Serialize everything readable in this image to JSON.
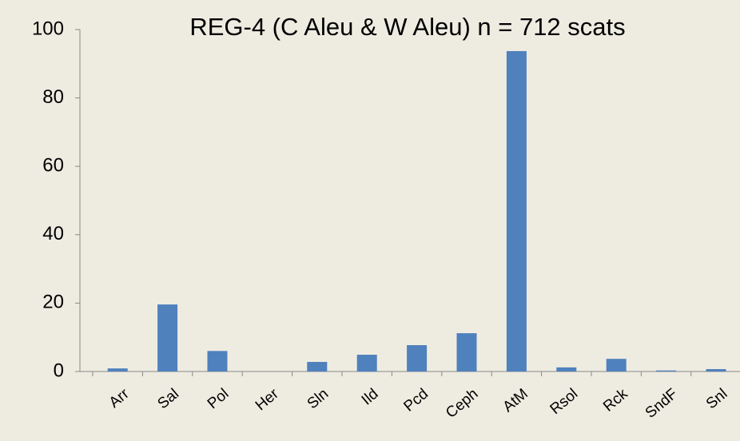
{
  "chart_data": {
    "type": "bar",
    "title": "REG-4 (C Aleu & W Aleu) n = 712 scats",
    "categories": [
      "Arr",
      "Sal",
      "Pol",
      "Her",
      "Sln",
      "Ild",
      "Pcd",
      "Ceph",
      "AtM",
      "Rsol",
      "Rck",
      "SndF",
      "Snl"
    ],
    "values": [
      0.9,
      19.6,
      6.0,
      0,
      2.8,
      4.9,
      7.7,
      11.2,
      93.7,
      1.2,
      3.7,
      0.3,
      0.7
    ],
    "color": "#4f81bd",
    "ylim": [
      0,
      100
    ],
    "yticks": [
      0,
      20,
      40,
      60,
      80,
      100
    ],
    "grid": false
  }
}
